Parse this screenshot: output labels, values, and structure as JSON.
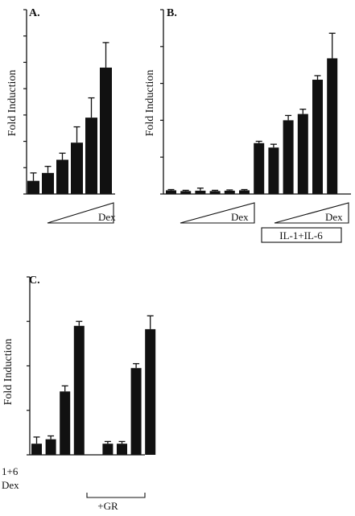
{
  "chart_data": [
    {
      "panel": "A.",
      "type": "bar",
      "ylabel": "Fold Induction",
      "ylim": [
        0,
        14
      ],
      "yticks": [
        0,
        2,
        4,
        6,
        8,
        10,
        12,
        14
      ],
      "values": [
        1.0,
        1.6,
        2.6,
        3.9,
        5.8,
        9.6
      ],
      "errors": [
        0.6,
        0.5,
        0.5,
        1.2,
        1.5,
        1.9
      ],
      "gradient_label": "Dex"
    },
    {
      "panel": "B.",
      "type": "bar",
      "ylabel": "Fold Induction",
      "ylim": [
        0,
        50
      ],
      "yticks": [
        0,
        10,
        20,
        30,
        40,
        50
      ],
      "values": [
        1.0,
        0.8,
        0.9,
        0.8,
        0.9,
        1.0,
        13.8,
        12.6,
        20.0,
        21.7,
        31.0,
        36.8
      ],
      "errors": [
        0.2,
        0.2,
        0.7,
        0.2,
        0.2,
        0.2,
        0.5,
        0.9,
        1.3,
        1.3,
        1.1,
        6.8
      ],
      "gradient_labels": [
        "Dex",
        "Dex"
      ],
      "box_label": "IL-1+IL-6"
    },
    {
      "panel": "C.",
      "type": "bar",
      "ylabel": "Fold Induction",
      "ylim": [
        0,
        16
      ],
      "yticks": [
        0,
        4,
        8,
        12,
        16
      ],
      "values": [
        1.0,
        1.4,
        5.7,
        11.6,
        1.0,
        1.0,
        7.8,
        11.3
      ],
      "errors": [
        0.6,
        0.3,
        0.5,
        0.4,
        0.2,
        0.2,
        0.4,
        1.2
      ],
      "row_labels": [
        "1+6",
        "Dex"
      ],
      "plus_sign": "+",
      "row1_marks": [
        false,
        false,
        true,
        true,
        false,
        false,
        true,
        true
      ],
      "row2_marks": [
        false,
        true,
        false,
        true,
        false,
        true,
        false,
        true
      ],
      "bracket_label": "+GR"
    }
  ],
  "colors": {
    "bar": "#111111",
    "axis": "#111111",
    "background": "#ffffff"
  }
}
